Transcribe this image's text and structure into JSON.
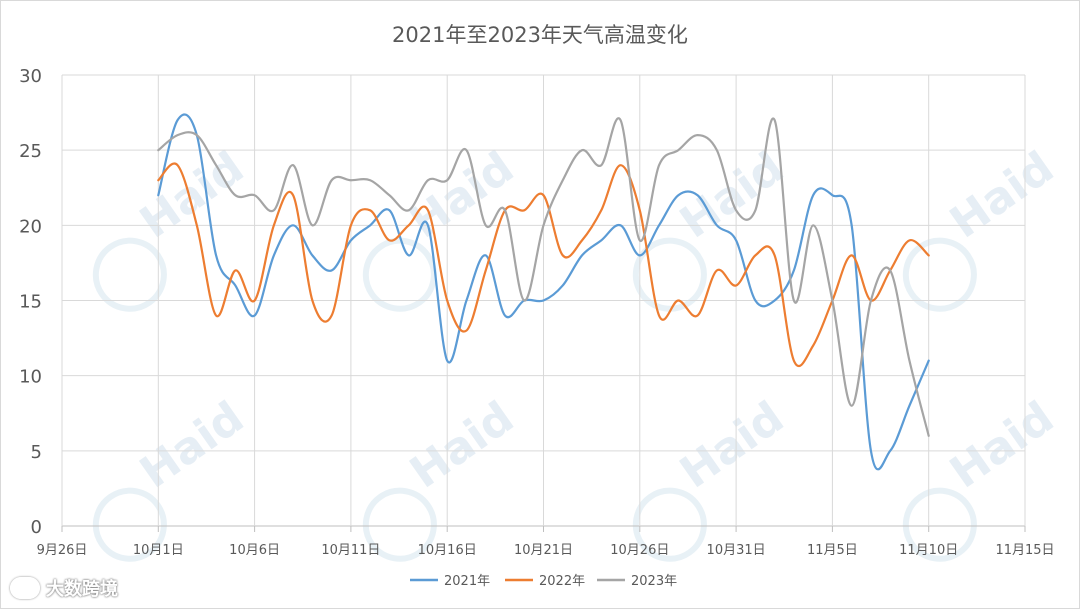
{
  "brand": {
    "text": "大数跨境"
  },
  "watermark": {
    "text": "Haid"
  },
  "colors": {
    "series_2021": "#5b9bd5",
    "series_2022": "#ed7d31",
    "series_2023": "#a5a5a5"
  },
  "chart_data": {
    "type": "line",
    "title": "2021年至2023年天气高温变化",
    "xlabel": "",
    "ylabel": "",
    "ylim": [
      0,
      30
    ],
    "yticks": [
      0,
      5,
      10,
      15,
      20,
      25,
      30
    ],
    "x_domain": [
      "9月26日",
      "11月15日"
    ],
    "x_tick_labels": [
      "9月26日",
      "10月1日",
      "10月6日",
      "10月11日",
      "10月16日",
      "10月21日",
      "10月26日",
      "10月31日",
      "11月5日",
      "11月10日",
      "11月15日"
    ],
    "grid": true,
    "legend_position": "bottom-center",
    "x": [
      "10月1日",
      "10月2日",
      "10月3日",
      "10月4日",
      "10月5日",
      "10月6日",
      "10月7日",
      "10月8日",
      "10月9日",
      "10月10日",
      "10月11日",
      "10月12日",
      "10月13日",
      "10月14日",
      "10月15日",
      "10月16日",
      "10月17日",
      "10月18日",
      "10月19日",
      "10月20日",
      "10月21日",
      "10月22日",
      "10月23日",
      "10月24日",
      "10月25日",
      "10月26日",
      "10月27日",
      "10月28日",
      "10月29日",
      "10月30日",
      "10月31日",
      "11月1日",
      "11月2日",
      "11月3日",
      "11月4日",
      "11月5日",
      "11月6日",
      "11月7日",
      "11月8日",
      "11月9日",
      "11月10日"
    ],
    "series": [
      {
        "name": "2021年",
        "color": "#5b9bd5",
        "values": [
          22,
          27,
          26,
          18,
          16,
          14,
          18,
          20,
          18,
          17,
          19,
          20,
          21,
          18,
          20,
          11,
          15,
          18,
          14,
          15,
          15,
          16,
          18,
          19,
          20,
          18,
          20,
          22,
          22,
          20,
          19,
          15,
          15,
          17,
          22,
          22,
          20,
          5,
          5,
          8,
          11
        ]
      },
      {
        "name": "2022年",
        "color": "#ed7d31",
        "values": [
          23,
          24,
          20,
          14,
          17,
          15,
          20,
          22,
          15,
          14,
          20,
          21,
          19,
          20,
          21,
          15,
          13,
          17,
          21,
          21,
          22,
          18,
          19,
          21,
          24,
          21,
          14,
          15,
          14,
          17,
          16,
          18,
          18,
          11,
          12,
          15,
          18,
          15,
          17,
          19,
          18
        ]
      },
      {
        "name": "2023年",
        "color": "#a5a5a5",
        "values": [
          25,
          26,
          26,
          24,
          22,
          22,
          21,
          24,
          20,
          23,
          23,
          23,
          22,
          21,
          23,
          23,
          25,
          20,
          21,
          15,
          20,
          23,
          25,
          24,
          27,
          19,
          24,
          25,
          26,
          25,
          21,
          21,
          27,
          15,
          20,
          15,
          8,
          15,
          17,
          11,
          6
        ]
      }
    ]
  }
}
